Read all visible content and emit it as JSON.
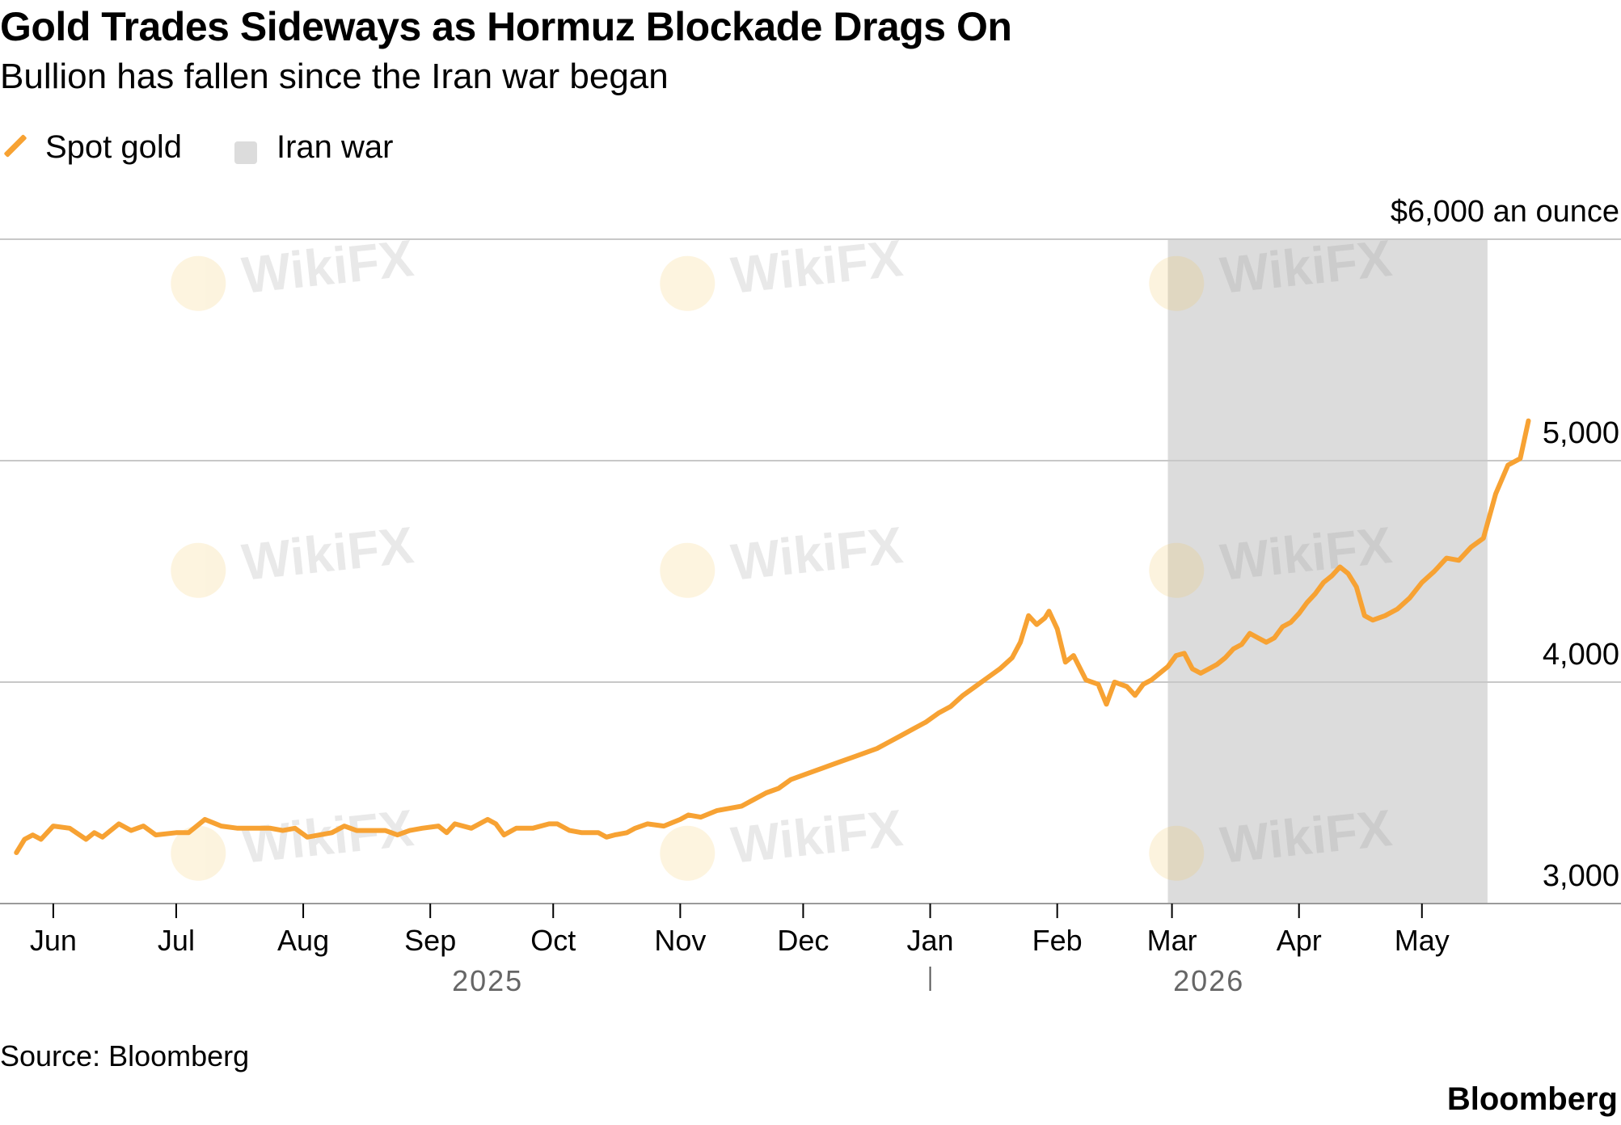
{
  "header": {
    "title": "Gold Trades Sideways as Hormuz Blockade Drags On",
    "subtitle": "Bullion has fallen since the Iran war began"
  },
  "legend": {
    "items": [
      {
        "label": "Spot gold",
        "icon": "line-swatch-icon",
        "color": "#f7a233"
      },
      {
        "label": "Iran war",
        "icon": "square-swatch-icon",
        "color": "#dcdcdc"
      }
    ]
  },
  "footer": {
    "source": "Source: Bloomberg",
    "brand": "Bloomberg"
  },
  "watermark": "WikiFX",
  "chart_data": {
    "type": "line",
    "y_unit_label": "$6,000 an ounce",
    "ylim": [
      3000,
      6000
    ],
    "yticks": [
      3000,
      4000,
      5000,
      6000
    ],
    "ytick_labels": [
      "3,000",
      "4,000",
      "5,000",
      ""
    ],
    "x_start": "2025-05-19",
    "x_end": "2026-05-19",
    "month_ticks": [
      {
        "label": "Jun",
        "date": "2025-06-01"
      },
      {
        "label": "Jul",
        "date": "2025-07-01"
      },
      {
        "label": "Aug",
        "date": "2025-08-01"
      },
      {
        "label": "Sep",
        "date": "2025-09-01"
      },
      {
        "label": "Oct",
        "date": "2025-10-01"
      },
      {
        "label": "Nov",
        "date": "2025-11-01"
      },
      {
        "label": "Dec",
        "date": "2025-12-01"
      },
      {
        "label": "Jan",
        "date": "2026-01-01"
      },
      {
        "label": "Feb",
        "date": "2026-02-01"
      },
      {
        "label": "Mar",
        "date": "2026-03-01"
      },
      {
        "label": "Apr",
        "date": "2026-04-01"
      },
      {
        "label": "May",
        "date": "2026-05-01"
      }
    ],
    "year_labels": [
      {
        "label": "2025",
        "date": "2025-09-15"
      },
      {
        "label": "2026",
        "date": "2026-03-10"
      }
    ],
    "year_divider_date": "2026-01-01",
    "shaded_region": {
      "label": "Iran war",
      "start": "2026-02-28",
      "end": "2026-05-17"
    },
    "grid": true,
    "legend_position": "top-left",
    "series": [
      {
        "name": "Spot gold",
        "color": "#f7a233",
        "points": [
          [
            "2025-05-23",
            3230
          ],
          [
            "2025-05-25",
            3290
          ],
          [
            "2025-05-27",
            3310
          ],
          [
            "2025-05-29",
            3290
          ],
          [
            "2025-06-01",
            3350
          ],
          [
            "2025-06-05",
            3340
          ],
          [
            "2025-06-09",
            3290
          ],
          [
            "2025-06-11",
            3320
          ],
          [
            "2025-06-13",
            3300
          ],
          [
            "2025-06-17",
            3360
          ],
          [
            "2025-06-20",
            3330
          ],
          [
            "2025-06-23",
            3350
          ],
          [
            "2025-06-26",
            3310
          ],
          [
            "2025-07-01",
            3320
          ],
          [
            "2025-07-04",
            3320
          ],
          [
            "2025-07-08",
            3380
          ],
          [
            "2025-07-12",
            3350
          ],
          [
            "2025-07-16",
            3340
          ],
          [
            "2025-07-20",
            3340
          ],
          [
            "2025-07-24",
            3340
          ],
          [
            "2025-07-27",
            3330
          ],
          [
            "2025-07-30",
            3340
          ],
          [
            "2025-08-02",
            3300
          ],
          [
            "2025-08-05",
            3310
          ],
          [
            "2025-08-08",
            3320
          ],
          [
            "2025-08-11",
            3350
          ],
          [
            "2025-08-14",
            3330
          ],
          [
            "2025-08-18",
            3330
          ],
          [
            "2025-08-21",
            3330
          ],
          [
            "2025-08-24",
            3310
          ],
          [
            "2025-08-27",
            3330
          ],
          [
            "2025-08-30",
            3340
          ],
          [
            "2025-09-03",
            3350
          ],
          [
            "2025-09-05",
            3320
          ],
          [
            "2025-09-07",
            3360
          ],
          [
            "2025-09-11",
            3340
          ],
          [
            "2025-09-15",
            3380
          ],
          [
            "2025-09-17",
            3360
          ],
          [
            "2025-09-19",
            3310
          ],
          [
            "2025-09-22",
            3340
          ],
          [
            "2025-09-26",
            3340
          ],
          [
            "2025-09-30",
            3360
          ],
          [
            "2025-10-02",
            3360
          ],
          [
            "2025-10-05",
            3330
          ],
          [
            "2025-10-08",
            3320
          ],
          [
            "2025-10-12",
            3320
          ],
          [
            "2025-10-14",
            3300
          ],
          [
            "2025-10-16",
            3310
          ],
          [
            "2025-10-19",
            3320
          ],
          [
            "2025-10-21",
            3340
          ],
          [
            "2025-10-24",
            3360
          ],
          [
            "2025-10-28",
            3350
          ],
          [
            "2025-11-01",
            3380
          ],
          [
            "2025-11-03",
            3400
          ],
          [
            "2025-11-06",
            3390
          ],
          [
            "2025-11-10",
            3420
          ],
          [
            "2025-11-13",
            3430
          ],
          [
            "2025-11-16",
            3440
          ],
          [
            "2025-11-19",
            3470
          ],
          [
            "2025-11-22",
            3500
          ],
          [
            "2025-11-25",
            3520
          ],
          [
            "2025-11-28",
            3560
          ],
          [
            "2025-12-01",
            3580
          ],
          [
            "2025-12-04",
            3600
          ],
          [
            "2025-12-07",
            3620
          ],
          [
            "2025-12-10",
            3640
          ],
          [
            "2025-12-13",
            3660
          ],
          [
            "2025-12-16",
            3680
          ],
          [
            "2025-12-19",
            3700
          ],
          [
            "2025-12-22",
            3730
          ],
          [
            "2025-12-25",
            3760
          ],
          [
            "2025-12-28",
            3790
          ],
          [
            "2025-12-31",
            3820
          ],
          [
            "2026-01-03",
            3860
          ],
          [
            "2026-01-06",
            3890
          ],
          [
            "2026-01-09",
            3940
          ],
          [
            "2026-01-12",
            3980
          ],
          [
            "2026-01-15",
            4020
          ],
          [
            "2026-01-18",
            4060
          ],
          [
            "2026-01-21",
            4110
          ],
          [
            "2026-01-23",
            4180
          ],
          [
            "2026-01-25",
            4300
          ],
          [
            "2026-01-27",
            4260
          ],
          [
            "2026-01-29",
            4290
          ],
          [
            "2026-01-30",
            4320
          ],
          [
            "2026-02-01",
            4240
          ],
          [
            "2026-02-03",
            4090
          ],
          [
            "2026-02-05",
            4120
          ],
          [
            "2026-02-08",
            4010
          ],
          [
            "2026-02-11",
            3990
          ],
          [
            "2026-02-13",
            3900
          ],
          [
            "2026-02-15",
            4000
          ],
          [
            "2026-02-18",
            3980
          ],
          [
            "2026-02-20",
            3940
          ],
          [
            "2026-02-22",
            3990
          ],
          [
            "2026-02-24",
            4010
          ],
          [
            "2026-02-26",
            4040
          ],
          [
            "2026-02-28",
            4070
          ],
          [
            "2026-03-02",
            4120
          ],
          [
            "2026-03-04",
            4130
          ],
          [
            "2026-03-06",
            4060
          ],
          [
            "2026-03-08",
            4040
          ],
          [
            "2026-03-10",
            4060
          ],
          [
            "2026-03-12",
            4080
          ],
          [
            "2026-03-14",
            4110
          ],
          [
            "2026-03-16",
            4150
          ],
          [
            "2026-03-18",
            4170
          ],
          [
            "2026-03-20",
            4220
          ],
          [
            "2026-03-22",
            4200
          ],
          [
            "2026-03-24",
            4180
          ],
          [
            "2026-03-26",
            4200
          ],
          [
            "2026-03-28",
            4250
          ],
          [
            "2026-03-30",
            4270
          ],
          [
            "2026-04-01",
            4310
          ],
          [
            "2026-04-03",
            4360
          ],
          [
            "2026-04-05",
            4400
          ],
          [
            "2026-04-07",
            4450
          ],
          [
            "2026-04-09",
            4480
          ],
          [
            "2026-04-11",
            4520
          ],
          [
            "2026-04-13",
            4490
          ],
          [
            "2026-04-15",
            4430
          ],
          [
            "2026-04-17",
            4300
          ],
          [
            "2026-04-19",
            4280
          ],
          [
            "2026-04-22",
            4300
          ],
          [
            "2026-04-25",
            4330
          ],
          [
            "2026-04-28",
            4380
          ],
          [
            "2026-05-01",
            4450
          ],
          [
            "2026-05-04",
            4500
          ],
          [
            "2026-05-07",
            4560
          ],
          [
            "2026-05-10",
            4550
          ],
          [
            "2026-05-13",
            4610
          ],
          [
            "2026-05-16",
            4650
          ],
          [
            "2026-05-19",
            4850
          ],
          [
            "2026-05-22",
            4980
          ],
          [
            "2026-05-25",
            5010
          ],
          [
            "2026-05-27",
            5180
          ]
        ]
      }
    ]
  }
}
